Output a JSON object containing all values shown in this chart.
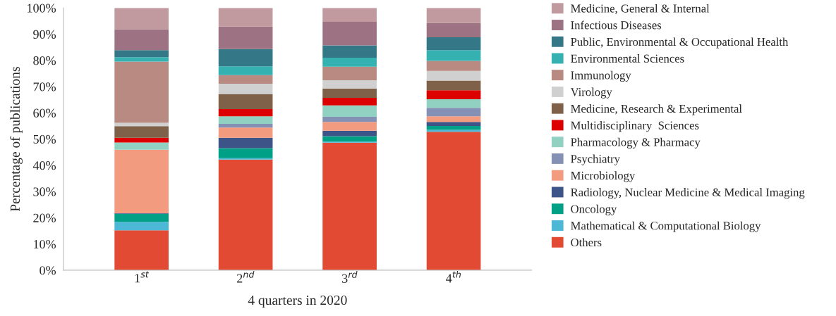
{
  "chart_data": {
    "type": "bar",
    "stacked": true,
    "xlabel": "4 quarters in 2020",
    "ylabel": "Percentage of publications",
    "categories": [
      "1$^{st}$",
      "2$^{nd}$",
      "3$^{rd}$",
      "4$^{th}$"
    ],
    "ylim": [
      0,
      100
    ],
    "yticks": [
      {
        "value": 0,
        "label": "0%"
      },
      {
        "value": 10,
        "label": "10%"
      },
      {
        "value": 20,
        "label": "20%"
      },
      {
        "value": 30,
        "label": "30%"
      },
      {
        "value": 40,
        "label": "40%"
      },
      {
        "value": 50,
        "label": "50%"
      },
      {
        "value": 60,
        "label": "60%"
      },
      {
        "value": 70,
        "label": "70%"
      },
      {
        "value": 80,
        "label": "80%"
      },
      {
        "value": 90,
        "label": "90%"
      },
      {
        "value": 100,
        "label": "100%"
      }
    ],
    "grid": false,
    "legend": "right",
    "series": [
      {
        "name": "Others",
        "color": "#e34a33",
        "values": [
          15.2,
          42.2,
          48.6,
          52.8
        ]
      },
      {
        "name": "Mathematical & Computational Biology",
        "color": "#4cb8d6",
        "values": [
          3.2,
          0.5,
          0.4,
          0.7
        ]
      },
      {
        "name": "Oncology",
        "color": "#00a087",
        "values": [
          3.1,
          3.8,
          2.1,
          1.5
        ]
      },
      {
        "name": "Radiology, Nuclear Medicine & Medical Imaging",
        "color": "#3c5488",
        "values": [
          0.2,
          4.0,
          2.1,
          1.5
        ]
      },
      {
        "name": "Microbiology",
        "color": "#f39b7f",
        "values": [
          24.2,
          3.9,
          3.3,
          2.2
        ]
      },
      {
        "name": "Psychiatry",
        "color": "#8491b4",
        "values": [
          0,
          1.4,
          2.0,
          3.2
        ]
      },
      {
        "name": "Pharmacology & Pharmacy",
        "color": "#91d1c2",
        "values": [
          2.8,
          2.9,
          4.3,
          3.3
        ]
      },
      {
        "name": "Multidisciplinary  Sciences",
        "color": "#dc0000",
        "values": [
          1.8,
          2.7,
          2.9,
          3.4
        ]
      },
      {
        "name": "Medicine, Research & Experimental",
        "color": "#7e6148",
        "values": [
          4.4,
          5.8,
          3.6,
          3.7
        ]
      },
      {
        "name": "Virology",
        "color": "#d0d0d0",
        "values": [
          1.3,
          3.9,
          3.1,
          3.7
        ]
      },
      {
        "name": "Immunology",
        "color": "#b98a82",
        "values": [
          23.3,
          3.3,
          5.2,
          3.8
        ]
      },
      {
        "name": "Environmental Sciences",
        "color": "#35b1b1",
        "values": [
          1.7,
          3.3,
          3.4,
          4.1
        ]
      },
      {
        "name": "Public, Environmental & Occupational Health",
        "color": "#347787",
        "values": [
          2.7,
          6.6,
          4.7,
          4.9
        ]
      },
      {
        "name": "Infectious Diseases",
        "color": "#9d7383",
        "values": [
          7.9,
          8.6,
          9.0,
          5.4
        ]
      },
      {
        "name": "Medicine, General & Internal",
        "color": "#c19a9f",
        "values": [
          8.2,
          7.1,
          5.3,
          5.8
        ]
      }
    ]
  }
}
